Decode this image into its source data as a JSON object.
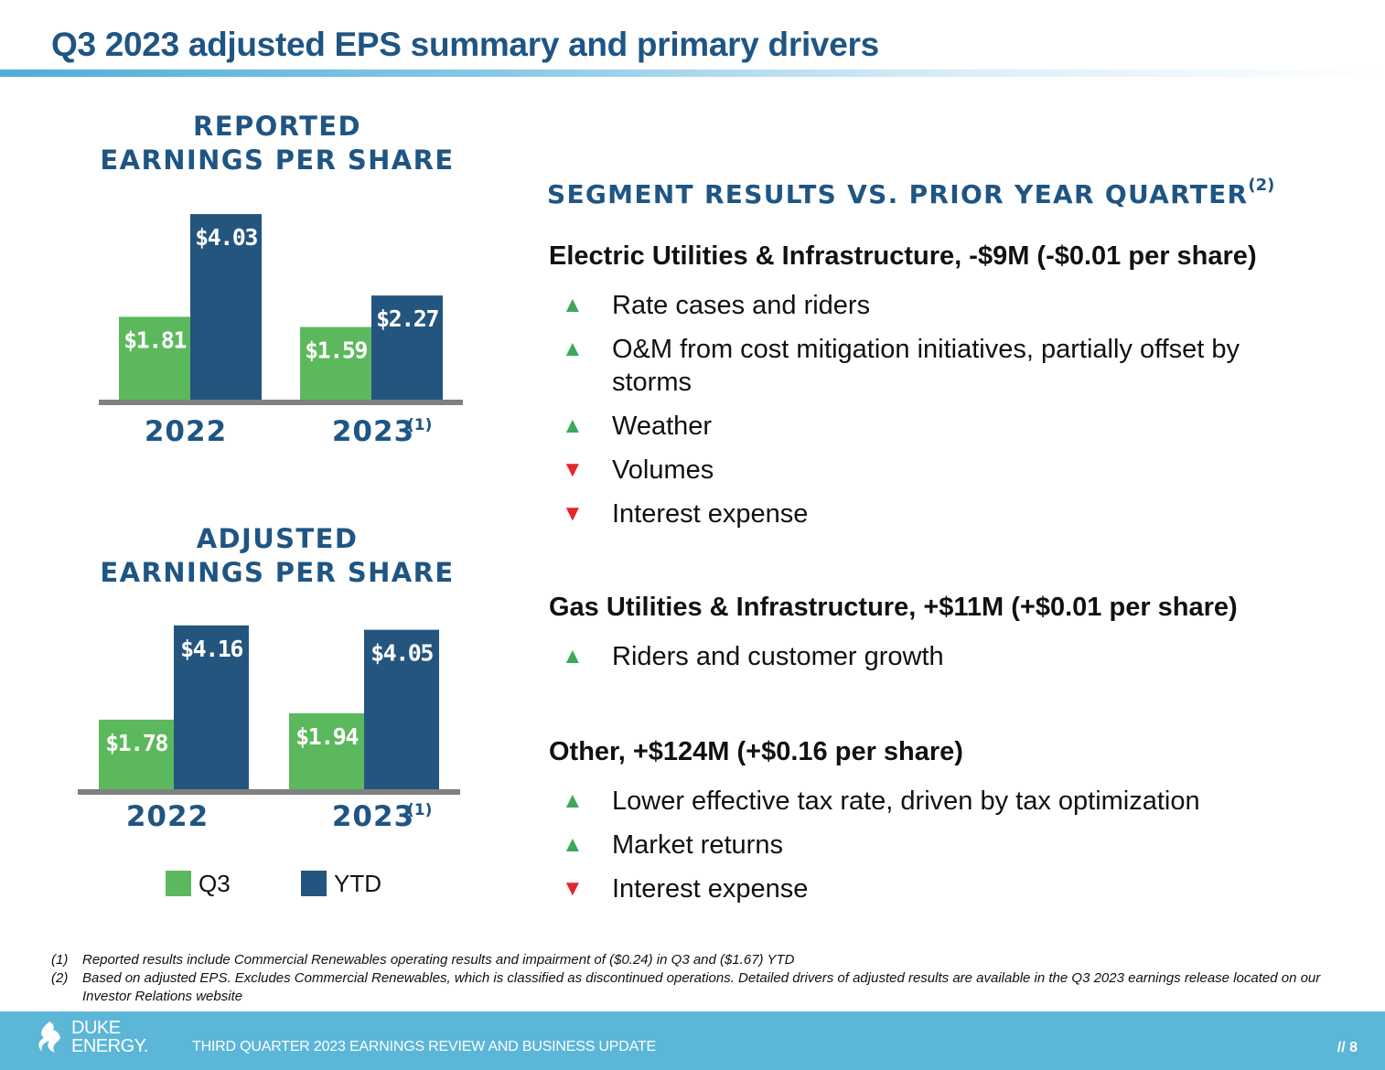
{
  "title": "Q3 2023 adjusted EPS summary and primary drivers",
  "colors": {
    "q3": "#5cb85c",
    "ytd": "#24557f",
    "axis": "#808080",
    "title": "#1f5583",
    "up": "#3ca85a",
    "down": "#e2262b",
    "footer": "#5bb6d8"
  },
  "reported": {
    "title_line1": "REPORTED",
    "title_line2": "EARNINGS PER SHARE"
  },
  "adjusted": {
    "title_line1": "ADJUSTED",
    "title_line2": "EARNINGS PER SHARE"
  },
  "chart_data": [
    {
      "type": "bar",
      "title": "REPORTED EARNINGS PER SHARE",
      "categories": [
        "2022",
        "2023(1)"
      ],
      "series": [
        {
          "name": "Q3",
          "values": [
            1.81,
            1.59
          ],
          "labels": [
            "$1.81",
            "$1.59"
          ]
        },
        {
          "name": "YTD",
          "values": [
            4.03,
            2.27
          ],
          "labels": [
            "$4.03",
            "$2.27"
          ]
        }
      ]
    },
    {
      "type": "bar",
      "title": "ADJUSTED EARNINGS PER SHARE",
      "categories": [
        "2022",
        "2023(1)"
      ],
      "series": [
        {
          "name": "Q3",
          "values": [
            1.78,
            1.94
          ],
          "labels": [
            "$1.78",
            "$1.94"
          ]
        },
        {
          "name": "YTD",
          "values": [
            4.16,
            4.05
          ],
          "labels": [
            "$4.16",
            "$4.05"
          ]
        }
      ]
    }
  ],
  "category_labels": {
    "year1": "2022",
    "year2": "2023",
    "year2_note": "(1)"
  },
  "legend": {
    "q3": "Q3",
    "ytd": "YTD"
  },
  "segments": {
    "title": "SEGMENT RESULTS VS. PRIOR YEAR QUARTER",
    "title_note": "(2)",
    "groups": [
      {
        "heading": "Electric Utilities & Infrastructure, -$9M (-$0.01 per share)",
        "items": [
          {
            "dir": "up",
            "text": "Rate cases and riders"
          },
          {
            "dir": "up",
            "text": "O&M from cost mitigation initiatives, partially offset by storms"
          },
          {
            "dir": "up",
            "text": "Weather"
          },
          {
            "dir": "down",
            "text": "Volumes"
          },
          {
            "dir": "down",
            "text": "Interest expense"
          }
        ]
      },
      {
        "heading": "Gas Utilities & Infrastructure, +$11M (+$0.01 per share)",
        "items": [
          {
            "dir": "up",
            "text": "Riders and customer growth"
          }
        ]
      },
      {
        "heading": "Other, +$124M (+$0.16 per share)",
        "items": [
          {
            "dir": "up",
            "text": "Lower effective tax rate, driven by tax optimization"
          },
          {
            "dir": "up",
            "text": "Market returns"
          },
          {
            "dir": "down",
            "text": "Interest expense"
          }
        ]
      }
    ]
  },
  "footnotes": [
    {
      "num": "(1)",
      "text": "Reported results include Commercial Renewables operating results and impairment of ($0.24) in Q3 and ($1.67) YTD"
    },
    {
      "num": "(2)",
      "text": "Based on adjusted EPS. Excludes Commercial Renewables, which is classified as discontinued operations. Detailed drivers of adjusted results are available in the Q3 2023 earnings release located on our Investor Relations website"
    }
  ],
  "footer": {
    "logo_line1": "DUKE",
    "logo_line2": "ENERGY.",
    "text": "THIRD QUARTER 2023 EARNINGS REVIEW AND BUSINESS UPDATE",
    "page": "// 8"
  }
}
